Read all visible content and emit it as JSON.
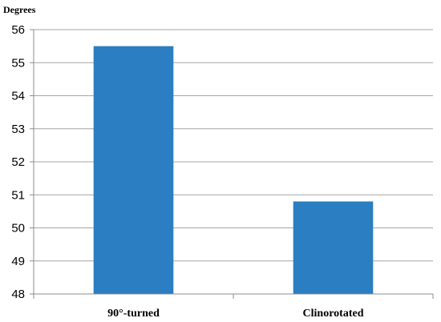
{
  "chart_data": {
    "type": "bar",
    "title": "",
    "xlabel": "",
    "ylabel": "Degrees",
    "categories": [
      "90°-turned",
      "Clinorotated"
    ],
    "values": [
      55.5,
      50.8
    ],
    "ylim": [
      48,
      56
    ],
    "yticks": [
      48,
      49,
      50,
      51,
      52,
      53,
      54,
      55,
      56
    ],
    "grid": true,
    "legend": "none",
    "bar_color": "#2a7ec1",
    "grid_color": "#a6a6a6",
    "axis_color": "#8c8c8c"
  }
}
